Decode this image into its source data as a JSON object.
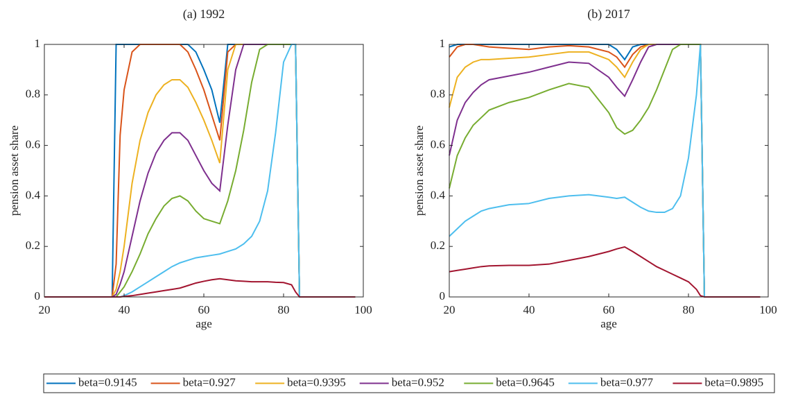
{
  "chart_data": [
    {
      "type": "line",
      "title": "(a) 1992",
      "xlabel": "age",
      "ylabel": "pension asset share",
      "xlim": [
        20,
        100
      ],
      "ylim": [
        0,
        1
      ],
      "xticks": [
        20,
        40,
        60,
        80,
        100
      ],
      "yticks": [
        0,
        0.2,
        0.4,
        0.6,
        0.8,
        1
      ],
      "legend": "bottom",
      "x": [
        20,
        30,
        36,
        37,
        38,
        39,
        40,
        42,
        44,
        46,
        48,
        50,
        52,
        54,
        56,
        58,
        60,
        62,
        64,
        66,
        68,
        70,
        72,
        74,
        76,
        78,
        80,
        82,
        83,
        84,
        90,
        98
      ],
      "series": [
        {
          "name": "beta=0.9145",
          "color": "#0072bd",
          "values": [
            0,
            0,
            0,
            0,
            1,
            1,
            1,
            1,
            1,
            1,
            1,
            1,
            1,
            1,
            1,
            0.97,
            0.9,
            0.82,
            0.69,
            1,
            1,
            1,
            1,
            1,
            1,
            1,
            1,
            1,
            1,
            0,
            0,
            0
          ]
        },
        {
          "name": "beta=0.927",
          "color": "#d95319",
          "values": [
            0,
            0,
            0,
            0,
            0.13,
            0.64,
            0.82,
            0.97,
            1,
            1,
            1,
            1,
            1,
            1,
            0.97,
            0.9,
            0.82,
            0.72,
            0.62,
            0.97,
            1,
            1,
            1,
            1,
            1,
            1,
            1,
            1,
            1,
            0,
            0,
            0
          ]
        },
        {
          "name": "beta=0.9395",
          "color": "#edb120",
          "values": [
            0,
            0,
            0,
            0,
            0.03,
            0.1,
            0.2,
            0.45,
            0.62,
            0.73,
            0.8,
            0.84,
            0.86,
            0.86,
            0.83,
            0.77,
            0.7,
            0.62,
            0.53,
            0.9,
            1,
            1,
            1,
            1,
            1,
            1,
            1,
            1,
            1,
            0,
            0,
            0
          ]
        },
        {
          "name": "beta=0.952",
          "color": "#7e2f8e",
          "values": [
            0,
            0,
            0,
            0,
            0.01,
            0.05,
            0.1,
            0.24,
            0.38,
            0.49,
            0.57,
            0.62,
            0.65,
            0.65,
            0.62,
            0.56,
            0.5,
            0.45,
            0.42,
            0.68,
            0.9,
            1,
            1,
            1,
            1,
            1,
            1,
            1,
            1,
            0,
            0,
            0
          ]
        },
        {
          "name": "beta=0.9645",
          "color": "#77ac30",
          "values": [
            0,
            0,
            0,
            0,
            0,
            0.02,
            0.04,
            0.1,
            0.17,
            0.25,
            0.31,
            0.36,
            0.39,
            0.4,
            0.38,
            0.34,
            0.31,
            0.3,
            0.29,
            0.38,
            0.5,
            0.66,
            0.85,
            0.98,
            1,
            1,
            1,
            1,
            1,
            0,
            0,
            0
          ]
        },
        {
          "name": "beta=0.977",
          "color": "#4dbeee",
          "values": [
            0,
            0,
            0,
            0,
            0,
            0,
            0.005,
            0.02,
            0.04,
            0.06,
            0.08,
            0.1,
            0.12,
            0.135,
            0.145,
            0.155,
            0.16,
            0.165,
            0.17,
            0.18,
            0.19,
            0.21,
            0.24,
            0.3,
            0.42,
            0.65,
            0.93,
            1,
            1,
            0,
            0,
            0
          ]
        },
        {
          "name": "beta=0.9895",
          "color": "#a2142f",
          "values": [
            0,
            0,
            0,
            0,
            0,
            0,
            0.002,
            0.005,
            0.01,
            0.015,
            0.02,
            0.025,
            0.03,
            0.035,
            0.045,
            0.055,
            0.062,
            0.068,
            0.072,
            0.068,
            0.064,
            0.062,
            0.06,
            0.06,
            0.06,
            0.058,
            0.057,
            0.048,
            0.02,
            0,
            0,
            0
          ]
        }
      ]
    },
    {
      "type": "line",
      "title": "(b) 2017",
      "xlabel": "age",
      "ylabel": "pension asset share",
      "xlim": [
        20,
        100
      ],
      "ylim": [
        0,
        1
      ],
      "xticks": [
        20,
        40,
        60,
        80,
        100
      ],
      "yticks": [
        0,
        0.2,
        0.4,
        0.6,
        0.8,
        1
      ],
      "x": [
        20,
        22,
        24,
        26,
        28,
        30,
        35,
        40,
        45,
        50,
        55,
        60,
        62,
        64,
        66,
        68,
        70,
        72,
        74,
        76,
        78,
        80,
        82,
        83,
        84,
        90,
        98
      ],
      "series": [
        {
          "name": "beta=0.9145",
          "color": "#0072bd",
          "values": [
            0.99,
            1,
            1,
            1,
            1,
            1,
            1,
            1,
            1,
            1,
            1,
            1,
            0.98,
            0.94,
            0.99,
            1,
            1,
            1,
            1,
            1,
            1,
            1,
            1,
            1,
            0,
            0,
            0
          ]
        },
        {
          "name": "beta=0.927",
          "color": "#d95319",
          "values": [
            0.95,
            0.99,
            1,
            1,
            0.995,
            0.99,
            0.985,
            0.98,
            0.99,
            0.995,
            0.99,
            0.97,
            0.95,
            0.91,
            0.96,
            0.99,
            1,
            1,
            1,
            1,
            1,
            1,
            1,
            1,
            0,
            0,
            0
          ]
        },
        {
          "name": "beta=0.9395",
          "color": "#edb120",
          "values": [
            0.75,
            0.87,
            0.91,
            0.93,
            0.94,
            0.94,
            0.945,
            0.95,
            0.96,
            0.97,
            0.97,
            0.94,
            0.91,
            0.87,
            0.93,
            0.98,
            1,
            1,
            1,
            1,
            1,
            1,
            1,
            1,
            0,
            0,
            0
          ]
        },
        {
          "name": "beta=0.952",
          "color": "#7e2f8e",
          "values": [
            0.56,
            0.7,
            0.77,
            0.81,
            0.84,
            0.86,
            0.875,
            0.89,
            0.91,
            0.93,
            0.925,
            0.87,
            0.83,
            0.795,
            0.86,
            0.93,
            0.99,
            1,
            1,
            1,
            1,
            1,
            1,
            1,
            0,
            0,
            0
          ]
        },
        {
          "name": "beta=0.9645",
          "color": "#77ac30",
          "values": [
            0.43,
            0.56,
            0.63,
            0.68,
            0.71,
            0.74,
            0.77,
            0.79,
            0.82,
            0.845,
            0.83,
            0.73,
            0.67,
            0.645,
            0.66,
            0.7,
            0.75,
            0.82,
            0.9,
            0.98,
            1,
            1,
            1,
            1,
            0,
            0,
            0
          ]
        },
        {
          "name": "beta=0.977",
          "color": "#4dbeee",
          "values": [
            0.24,
            0.27,
            0.3,
            0.32,
            0.34,
            0.35,
            0.365,
            0.37,
            0.39,
            0.4,
            0.405,
            0.395,
            0.39,
            0.395,
            0.375,
            0.355,
            0.34,
            0.335,
            0.335,
            0.35,
            0.4,
            0.55,
            0.8,
            1,
            0,
            0,
            0
          ]
        },
        {
          "name": "beta=0.9895",
          "color": "#a2142f",
          "values": [
            0.1,
            0.105,
            0.11,
            0.115,
            0.12,
            0.123,
            0.125,
            0.125,
            0.13,
            0.145,
            0.16,
            0.18,
            0.19,
            0.198,
            0.18,
            0.16,
            0.14,
            0.12,
            0.105,
            0.09,
            0.075,
            0.06,
            0.03,
            0.005,
            0,
            0,
            0
          ]
        }
      ]
    }
  ]
}
